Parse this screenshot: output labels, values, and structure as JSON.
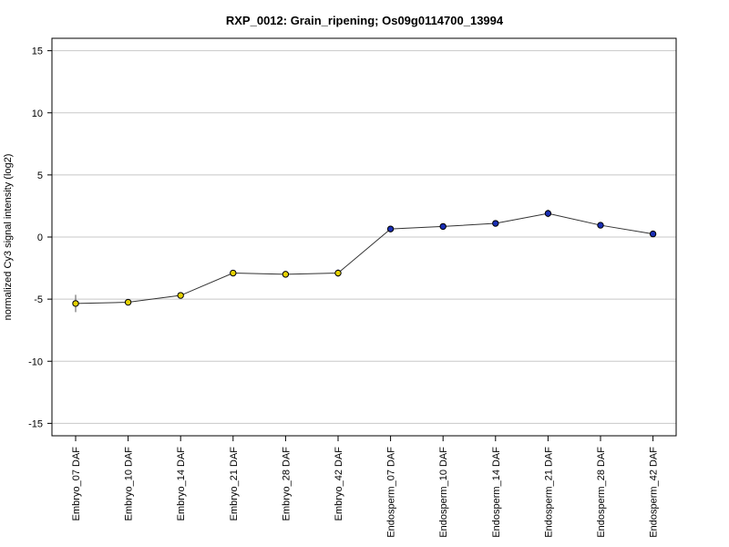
{
  "chart_data": {
    "type": "line",
    "title": "RXP_0012: Grain_ripening; Os09g0114700_13994",
    "xlabel": "",
    "ylabel": "normalized Cy3 signal intensity (log2)",
    "ylim": [
      -16,
      16
    ],
    "yticks": [
      -15,
      -10,
      -5,
      0,
      5,
      10,
      15
    ],
    "grid": "horizontal",
    "categories": [
      "Embryo_07 DAF",
      "Embryo_10 DAF",
      "Embryo_14 DAF",
      "Embryo_21 DAF",
      "Embryo_28 DAF",
      "Embryo_42 DAF",
      "Endosperm_07 DAF",
      "Endosperm_10 DAF",
      "Endosperm_14 DAF",
      "Endosperm_21 DAF",
      "Endosperm_28 DAF",
      "Endosperm_42 DAF"
    ],
    "series": [
      {
        "values": [
          -5.35,
          -5.25,
          -4.7,
          -2.9,
          -3.0,
          -2.9,
          0.65,
          0.85,
          1.1,
          1.9,
          0.95,
          0.25
        ],
        "errors": [
          0.7,
          0.1,
          0.2,
          0.1,
          0.1,
          0.3,
          0.15,
          0.2,
          0.1,
          0.3,
          0.1,
          0.1
        ],
        "point_colors": [
          "#e6d200",
          "#e6d200",
          "#e6d200",
          "#e6d200",
          "#e6d200",
          "#e6d200",
          "#1a2fb5",
          "#1a2fb5",
          "#1a2fb5",
          "#1a2fb5",
          "#1a2fb5",
          "#1a2fb5"
        ]
      }
    ]
  }
}
